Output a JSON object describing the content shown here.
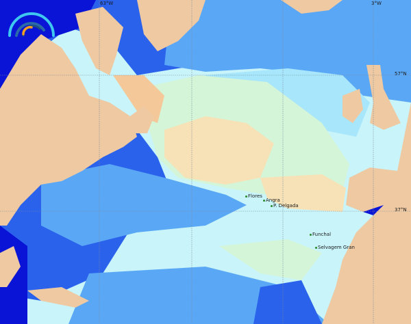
{
  "map": {
    "grid_labels": {
      "lon": [
        "63°W",
        "3°W"
      ],
      "lat": [
        "57°N",
        "37°N"
      ]
    },
    "places": [
      "Flores",
      "Angra",
      "P. Delgada",
      "Funchal",
      "Selvagem Gran"
    ],
    "colors": {
      "land": "#eec9a2",
      "deep": "#0a14d6",
      "blue": "#2a62ec",
      "mid": "#5aa8f5",
      "light": "#a8e6fb",
      "pale": "#c8f4fa",
      "green": "#d4f5d8",
      "peach": "#f6e2b6",
      "orange": "#f4c898"
    },
    "logo_icon": "wave-arc-logo-icon"
  }
}
